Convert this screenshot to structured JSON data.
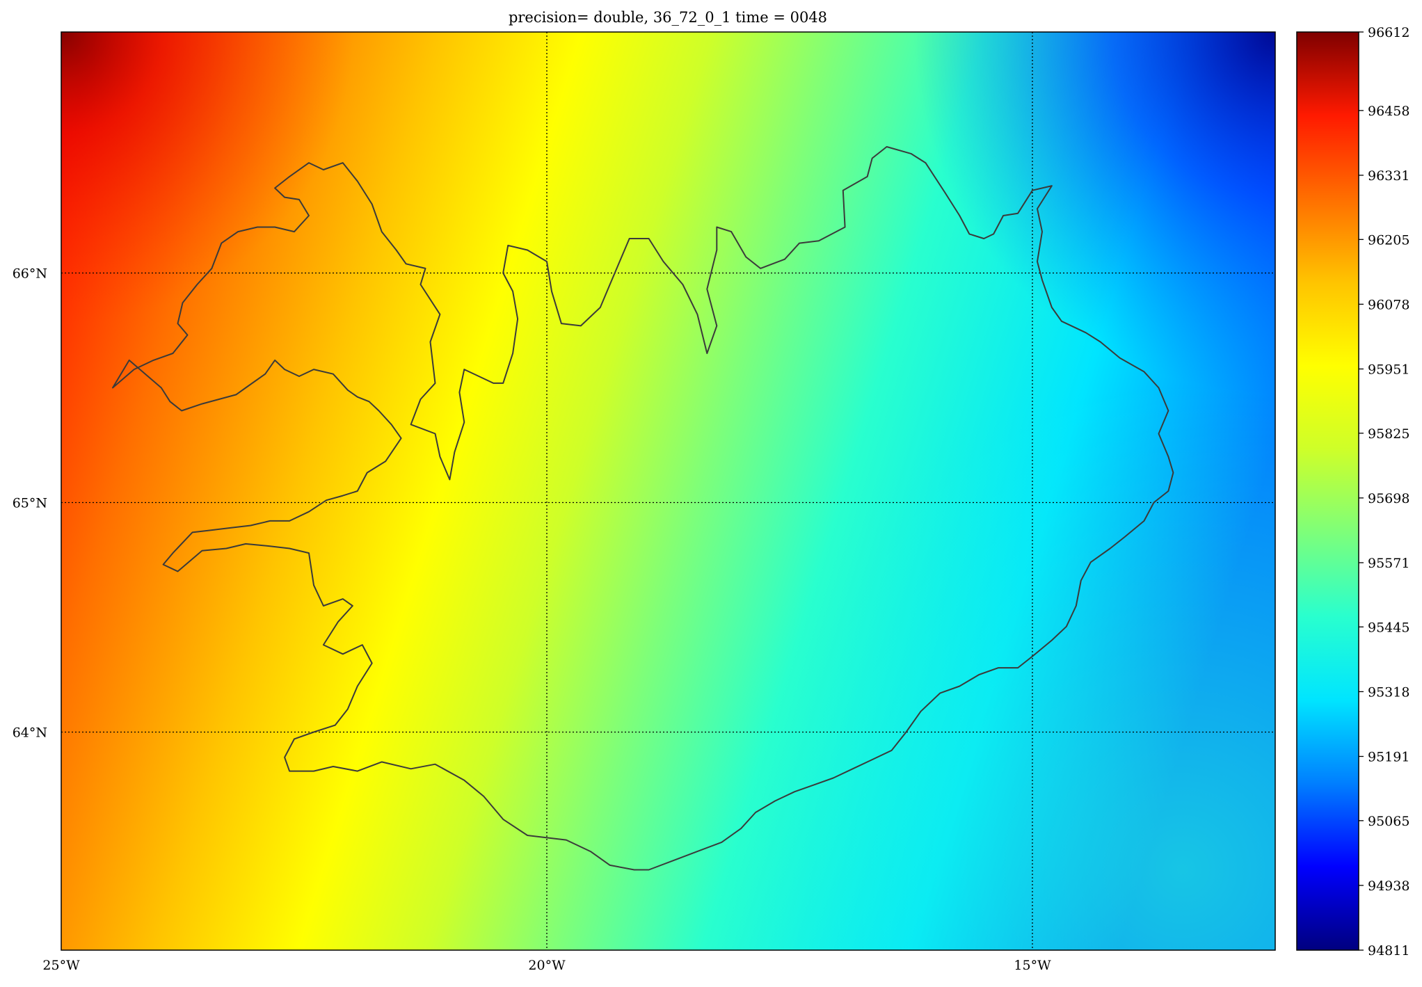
{
  "title": "precision= double, 36_72_0_1 time = 0048",
  "colors": {
    "background": "#ffffff",
    "coastline": "#3a3a3a",
    "gridline": "#000000",
    "colormap": [
      "#00007f",
      "#0000ff",
      "#007fff",
      "#00e5ff",
      "#29ffce",
      "#7dff7a",
      "#ceff29",
      "#ffff00",
      "#ffc400",
      "#ff6f00",
      "#ff1a00",
      "#7f0000"
    ]
  },
  "map": {
    "projection": "lat/lon",
    "extent": {
      "lon_min": -25,
      "lon_max": -12.5,
      "lat_min": 63.05,
      "lat_max": 67.05
    },
    "region": "Iceland",
    "field_description": "surface pressure (Pa)",
    "gradient": "high pressure in the west/north-west, low pressure in the north-east"
  },
  "lon_ticks": [
    {
      "value": -25,
      "label": "25°W",
      "gridline": false
    },
    {
      "value": -20,
      "label": "20°W",
      "gridline": true
    },
    {
      "value": -15,
      "label": "15°W",
      "gridline": true
    }
  ],
  "lat_ticks": [
    {
      "value": 66,
      "label": "66°N"
    },
    {
      "value": 65,
      "label": "65°N"
    },
    {
      "value": 64,
      "label": "64°N"
    }
  ],
  "colorbar": {
    "min": 94811,
    "max": 96612,
    "ticks": [
      "96612",
      "96458",
      "96331",
      "96205",
      "96078",
      "95951",
      "95825",
      "95698",
      "95571",
      "95445",
      "95318",
      "95191",
      "95065",
      "94938",
      "94811"
    ]
  },
  "coastline": [
    [
      -24.47,
      65.5
    ],
    [
      -24.3,
      65.62
    ],
    [
      -23.97,
      65.5
    ],
    [
      -23.88,
      65.44
    ],
    [
      -23.76,
      65.4
    ],
    [
      -23.55,
      65.43
    ],
    [
      -23.2,
      65.47
    ],
    [
      -23.1,
      65.5
    ],
    [
      -22.9,
      65.56
    ],
    [
      -22.8,
      65.62
    ],
    [
      -22.7,
      65.58
    ],
    [
      -22.55,
      65.55
    ],
    [
      -22.4,
      65.58
    ],
    [
      -22.2,
      65.56
    ],
    [
      -22.05,
      65.49
    ],
    [
      -21.95,
      65.46
    ],
    [
      -21.83,
      65.44
    ],
    [
      -21.73,
      65.4
    ],
    [
      -21.6,
      65.34
    ],
    [
      -21.5,
      65.28
    ],
    [
      -21.66,
      65.18
    ],
    [
      -21.85,
      65.13
    ],
    [
      -21.95,
      65.05
    ],
    [
      -22.1,
      65.03
    ],
    [
      -22.27,
      65.01
    ],
    [
      -22.45,
      64.96
    ],
    [
      -22.65,
      64.92
    ],
    [
      -22.85,
      64.92
    ],
    [
      -23.05,
      64.9
    ],
    [
      -23.25,
      64.89
    ],
    [
      -23.45,
      64.88
    ],
    [
      -23.65,
      64.87
    ],
    [
      -23.85,
      64.78
    ],
    [
      -23.95,
      64.73
    ],
    [
      -23.8,
      64.7
    ],
    [
      -23.55,
      64.79
    ],
    [
      -23.3,
      64.8
    ],
    [
      -23.1,
      64.82
    ],
    [
      -22.85,
      64.81
    ],
    [
      -22.65,
      64.8
    ],
    [
      -22.45,
      64.78
    ],
    [
      -22.4,
      64.64
    ],
    [
      -22.3,
      64.55
    ],
    [
      -22.1,
      64.58
    ],
    [
      -22.0,
      64.55
    ],
    [
      -22.15,
      64.48
    ],
    [
      -22.3,
      64.38
    ],
    [
      -22.1,
      64.34
    ],
    [
      -21.9,
      64.38
    ],
    [
      -21.8,
      64.3
    ],
    [
      -21.95,
      64.2
    ],
    [
      -22.05,
      64.1
    ],
    [
      -22.18,
      64.03
    ],
    [
      -22.4,
      64.0
    ],
    [
      -22.6,
      63.97
    ],
    [
      -22.7,
      63.89
    ],
    [
      -22.65,
      63.83
    ],
    [
      -22.4,
      63.83
    ],
    [
      -22.2,
      63.85
    ],
    [
      -21.95,
      63.83
    ],
    [
      -21.7,
      63.87
    ],
    [
      -21.4,
      63.84
    ],
    [
      -21.15,
      63.86
    ],
    [
      -20.85,
      63.79
    ],
    [
      -20.65,
      63.72
    ],
    [
      -20.45,
      63.62
    ],
    [
      -20.2,
      63.55
    ],
    [
      -19.8,
      63.53
    ],
    [
      -19.55,
      63.48
    ],
    [
      -19.35,
      63.42
    ],
    [
      -19.1,
      63.4
    ],
    [
      -18.95,
      63.4
    ],
    [
      -18.7,
      63.44
    ],
    [
      -18.45,
      63.48
    ],
    [
      -18.2,
      63.52
    ],
    [
      -18.0,
      63.58
    ],
    [
      -17.85,
      63.65
    ],
    [
      -17.65,
      63.7
    ],
    [
      -17.45,
      63.74
    ],
    [
      -17.25,
      63.77
    ],
    [
      -17.05,
      63.8
    ],
    [
      -16.85,
      63.84
    ],
    [
      -16.65,
      63.88
    ],
    [
      -16.45,
      63.92
    ],
    [
      -16.3,
      64.0
    ],
    [
      -16.15,
      64.09
    ],
    [
      -15.95,
      64.17
    ],
    [
      -15.75,
      64.2
    ],
    [
      -15.55,
      64.25
    ],
    [
      -15.35,
      64.28
    ],
    [
      -15.15,
      64.28
    ],
    [
      -15.0,
      64.33
    ],
    [
      -14.8,
      64.4
    ],
    [
      -14.65,
      64.46
    ],
    [
      -14.55,
      64.55
    ],
    [
      -14.5,
      64.66
    ],
    [
      -14.4,
      64.74
    ],
    [
      -14.2,
      64.8
    ],
    [
      -14.05,
      64.85
    ],
    [
      -13.85,
      64.92
    ],
    [
      -13.75,
      65.0
    ],
    [
      -13.6,
      65.05
    ],
    [
      -13.55,
      65.13
    ],
    [
      -13.6,
      65.2
    ],
    [
      -13.7,
      65.3
    ],
    [
      -13.6,
      65.4
    ],
    [
      -13.7,
      65.5
    ],
    [
      -13.85,
      65.57
    ],
    [
      -14.1,
      65.63
    ],
    [
      -14.3,
      65.7
    ],
    [
      -14.45,
      65.74
    ],
    [
      -14.7,
      65.79
    ],
    [
      -14.8,
      65.85
    ],
    [
      -14.9,
      65.97
    ],
    [
      -14.95,
      66.05
    ],
    [
      -14.9,
      66.18
    ],
    [
      -14.95,
      66.28
    ],
    [
      -14.8,
      66.38
    ],
    [
      -15.0,
      66.36
    ],
    [
      -15.15,
      66.26
    ],
    [
      -15.3,
      66.25
    ],
    [
      -15.4,
      66.17
    ],
    [
      -15.5,
      66.15
    ],
    [
      -15.65,
      66.17
    ],
    [
      -15.75,
      66.25
    ],
    [
      -15.9,
      66.35
    ],
    [
      -16.1,
      66.48
    ],
    [
      -16.25,
      66.52
    ],
    [
      -16.5,
      66.55
    ],
    [
      -16.65,
      66.5
    ],
    [
      -16.7,
      66.42
    ],
    [
      -16.95,
      66.36
    ],
    [
      -16.93,
      66.2
    ],
    [
      -17.2,
      66.14
    ],
    [
      -17.4,
      66.13
    ],
    [
      -17.55,
      66.06
    ],
    [
      -17.8,
      66.02
    ],
    [
      -17.95,
      66.07
    ],
    [
      -18.1,
      66.18
    ],
    [
      -18.25,
      66.2
    ],
    [
      -18.25,
      66.1
    ],
    [
      -18.35,
      65.93
    ],
    [
      -18.25,
      65.77
    ],
    [
      -18.35,
      65.65
    ],
    [
      -18.45,
      65.82
    ],
    [
      -18.6,
      65.95
    ],
    [
      -18.8,
      66.05
    ],
    [
      -18.95,
      66.15
    ],
    [
      -19.15,
      66.15
    ],
    [
      -19.25,
      66.05
    ],
    [
      -19.35,
      65.95
    ],
    [
      -19.45,
      65.85
    ],
    [
      -19.65,
      65.77
    ],
    [
      -19.85,
      65.78
    ],
    [
      -19.95,
      65.92
    ],
    [
      -20.0,
      66.05
    ],
    [
      -20.2,
      66.1
    ],
    [
      -20.4,
      66.12
    ],
    [
      -20.45,
      66.0
    ],
    [
      -20.35,
      65.92
    ],
    [
      -20.3,
      65.8
    ],
    [
      -20.35,
      65.65
    ],
    [
      -20.45,
      65.52
    ],
    [
      -20.55,
      65.52
    ],
    [
      -20.7,
      65.55
    ],
    [
      -20.85,
      65.58
    ],
    [
      -20.9,
      65.48
    ],
    [
      -20.85,
      65.35
    ],
    [
      -20.95,
      65.22
    ],
    [
      -21.0,
      65.1
    ],
    [
      -21.1,
      65.2
    ],
    [
      -21.15,
      65.3
    ],
    [
      -21.4,
      65.34
    ],
    [
      -21.3,
      65.45
    ],
    [
      -21.15,
      65.52
    ],
    [
      -21.2,
      65.7
    ],
    [
      -21.1,
      65.82
    ],
    [
      -21.3,
      65.95
    ],
    [
      -21.25,
      66.02
    ],
    [
      -21.45,
      66.04
    ],
    [
      -21.55,
      66.1
    ],
    [
      -21.7,
      66.18
    ],
    [
      -21.8,
      66.3
    ],
    [
      -21.95,
      66.4
    ],
    [
      -22.1,
      66.48
    ],
    [
      -22.3,
      66.45
    ],
    [
      -22.45,
      66.48
    ],
    [
      -22.65,
      66.42
    ],
    [
      -22.8,
      66.37
    ],
    [
      -22.7,
      66.33
    ],
    [
      -22.55,
      66.32
    ],
    [
      -22.45,
      66.25
    ],
    [
      -22.6,
      66.18
    ],
    [
      -22.8,
      66.2
    ],
    [
      -22.98,
      66.2
    ],
    [
      -23.18,
      66.18
    ],
    [
      -23.35,
      66.13
    ],
    [
      -23.45,
      66.02
    ],
    [
      -23.6,
      65.95
    ],
    [
      -23.75,
      65.87
    ],
    [
      -23.8,
      65.78
    ],
    [
      -23.7,
      65.73
    ],
    [
      -23.85,
      65.65
    ],
    [
      -24.05,
      65.62
    ],
    [
      -24.25,
      65.58
    ],
    [
      -24.47,
      65.5
    ]
  ]
}
